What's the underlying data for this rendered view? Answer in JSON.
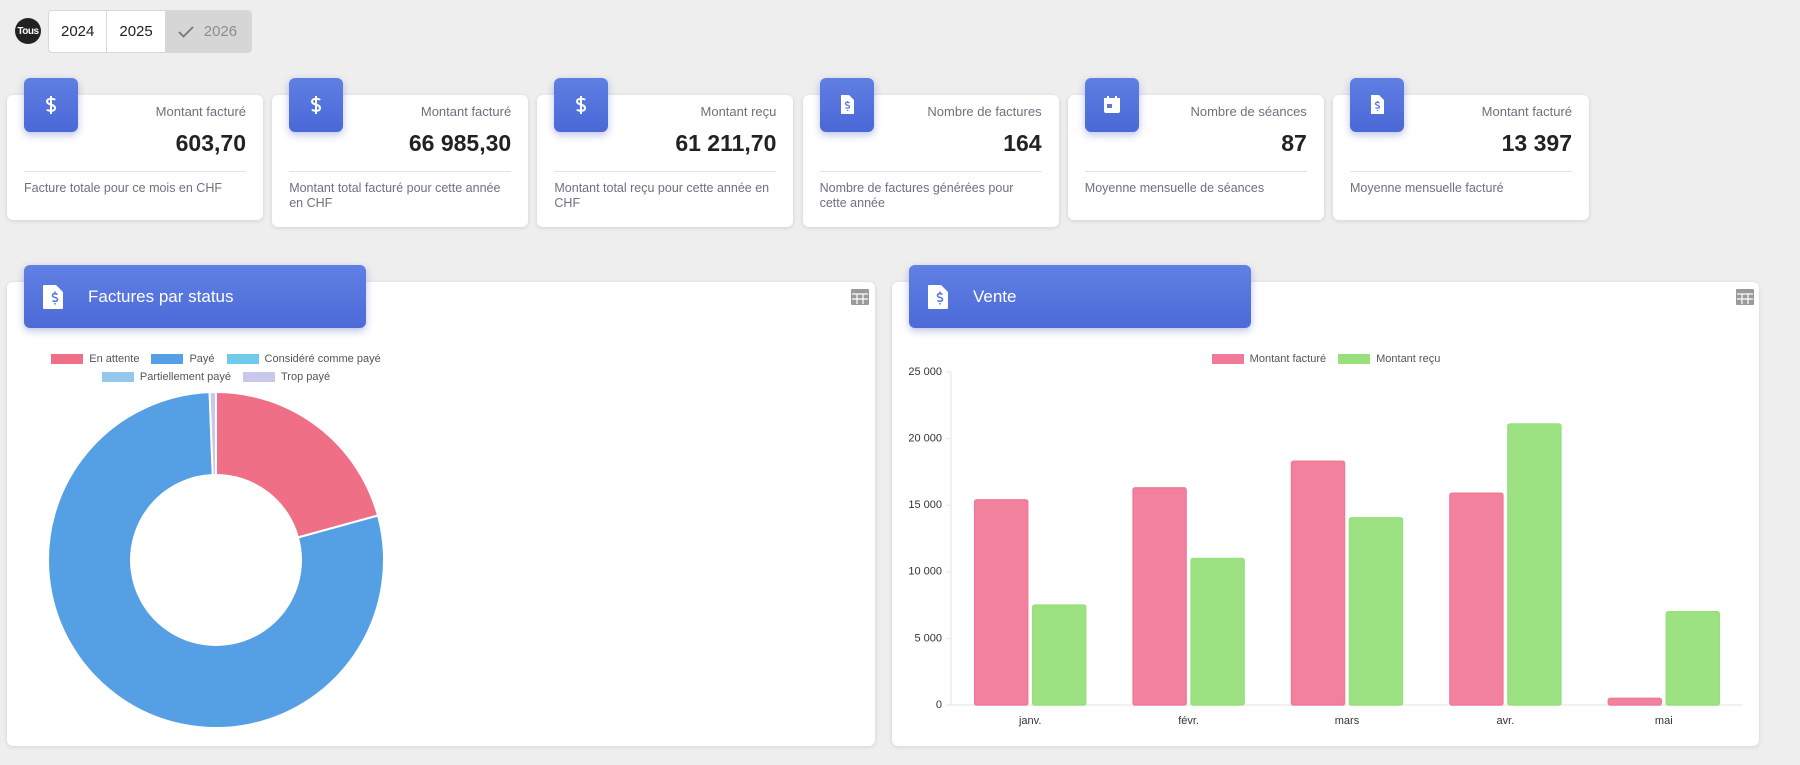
{
  "filters": {
    "all": "Tous",
    "years": [
      "2024",
      "2025",
      "2026"
    ]
  },
  "cards": [
    {
      "title": "Montant facturé",
      "value": "603,70",
      "description": "Facture totale pour ce mois en CHF"
    },
    {
      "title": "Montant facturé",
      "value": "66 985,30",
      "description": "Montant total facturé pour cette année en CHF"
    },
    {
      "title": "Montant reçu",
      "value": "61 211,70",
      "description": "Montant total reçu pour cette année en CHF"
    },
    {
      "title": "Nombre de factures",
      "value": "164",
      "description": "Nombre de factures générées pour cette année"
    },
    {
      "title": "Nombre de séances",
      "value": "87",
      "description": "Moyenne mensuelle de séances"
    },
    {
      "title": "Montant facturé",
      "value": "13 397",
      "description": "Moyenne mensuelle facturé"
    }
  ],
  "chart_data": [
    {
      "type": "doughnut",
      "title": "Factures par status",
      "categories": [
        "En attente",
        "Payé",
        "Considéré comme payé",
        "Partiellement payé",
        "Trop payé"
      ],
      "values": [
        34,
        129,
        0,
        0,
        1
      ],
      "colors": [
        "#ef6f86",
        "#55a0e4",
        "#6fcbe9",
        "#93c8ec",
        "#c8c8ec"
      ]
    },
    {
      "type": "bar",
      "title": "Vente",
      "categories": [
        "janv.",
        "févr.",
        "mars",
        "avr.",
        "mai"
      ],
      "series": [
        {
          "name": "Montant facturé",
          "color": "#f07a98",
          "values": [
            15400,
            16300,
            18300,
            15900,
            500
          ]
        },
        {
          "name": "Montant reçu",
          "color": "#97e07b",
          "values": [
            7500,
            11000,
            14050,
            21100,
            7000
          ]
        }
      ],
      "ylim": [
        0,
        25000
      ],
      "yticks": [
        0,
        {
          "value": 5000,
          "label": "5 000"
        },
        {
          "value": 10000,
          "label": "10 000"
        },
        {
          "value": 15000,
          "label": "15 000"
        },
        {
          "value": 20000,
          "label": "20 000"
        },
        {
          "value": 25000,
          "label": "25 000"
        }
      ],
      "grid": false
    }
  ]
}
